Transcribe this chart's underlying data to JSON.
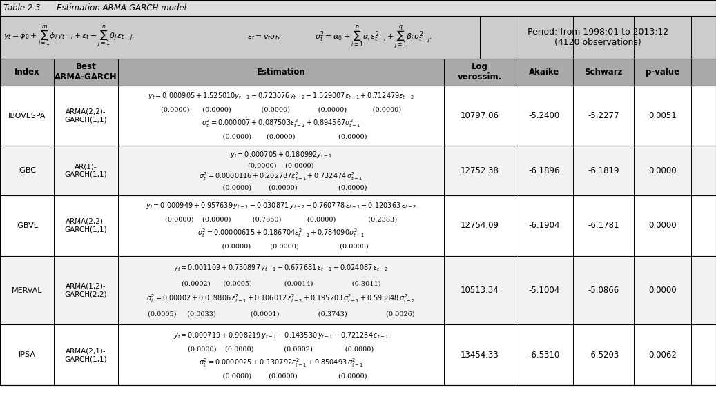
{
  "title": "Table 2.3  Estimation ARMA-GARCH model.",
  "formula_row": "y_t = \\phi_0 + \\sum_{i=1}^{m} \\phi_i\\, y_{t-i} + \\varepsilon_t - \\sum_{j=1}^{n} \\theta_j\\, \\varepsilon_{t-j},\\qquad \\varepsilon_t = v_t\\sigma_t,\\qquad \\sigma_t^2 = \\alpha_0 + \\sum_{i=1}^{p} \\alpha_i\\, \\varepsilon_{t-i}^2 + \\sum_{j=1}^{q} \\beta_j\\, \\sigma_{t-j}^2.",
  "period_text": "Period: from 1998:01 to 2013:12\n(4120 observations)",
  "col_headers": [
    "Index",
    "Best\nARMA-GARCH",
    "Estimation",
    "Log\nverossim.",
    "Akaike",
    "Schwarz",
    "p-value"
  ],
  "bg_header": "#C0C0C0",
  "bg_formula": "#C8C8C8",
  "bg_col_header": "#A8A8A8",
  "bg_white": "#FFFFFF",
  "bg_light": "#F0F0F0",
  "rows": [
    {
      "index": "IBOVESPA",
      "model": "ARMA(2,2)-\nGARCH(1,1)",
      "estimation_lines": [
        "y_t = 0.000905 + 1.525010y_{t-1}  - 0.723076y_{t-2} - 1.529007\\varepsilon_{t-1} + 0.712479\\varepsilon_{t-2}",
        "(0.0000)      (0.0000)              (0.0000)             (0.0000)            (0.0000)",
        "\\sigma_t^2 = 0.000007 + 0.087503\\varepsilon_{t-1}^2 + 0.894567\\sigma_{t-1}^2",
        "             (0.0000)       (0.0000)                    (0.0000)"
      ],
      "log": "10797.06",
      "akaike": "-5.2400",
      "schwarz": "-5.2277",
      "pvalue": "0.0051"
    },
    {
      "index": "IGBC",
      "model": "AR(1)-\nGARCH(1,1)",
      "estimation_lines": [
        "y_t = 0.000705 + 0.180992y_{t-1}",
        "(0.0000)    (0.0000)",
        "\\sigma_t^2 = 0.0000116 + 0.202787\\varepsilon_{t-1}^2 + 0.732474\\,\\sigma_{t-1}^2",
        "             (0.0000)        (0.0000)                   (0.0000)"
      ],
      "log": "12752.38",
      "akaike": "-6.1896",
      "schwarz": "-6.1819",
      "pvalue": "0.0000"
    },
    {
      "index": "IGBVL",
      "model": "ARMA(2,2)-\nGARCH(1,1)",
      "estimation_lines": [
        "y_t = 0.000949 + 0.957639\\,y_{t-1} - 0.030871\\,y_{t-2} - 0.760778\\,\\varepsilon_{t-1} - 0.120363\\,\\varepsilon_{t-2}",
        "(0.0000)    (0.0000)          (0.7850)            (0.0000)               (0.2383)",
        "\\sigma_t^2 = 0.00000615 + 0.186704\\varepsilon_{t-1}^2 + 0.784090\\sigma_{t-1}^2",
        "             (0.0000)         (0.0000)                   (0.0000)"
      ],
      "log": "12754.09",
      "akaike": "-6.1904",
      "schwarz": "-6.1781",
      "pvalue": "0.0000"
    },
    {
      "index": "MERVAL",
      "model": "ARMA(1,2)-\nGARCH(2,2)",
      "estimation_lines": [
        "y_t = 0.001109 + 0.730897\\,y_{t-1} - 0.677681\\,\\varepsilon_{t-1} - 0.024087\\,\\varepsilon_{t-2}",
        "(0.0002)      (0.0005)               (0.0014)                  (0.3011)",
        "\\sigma_t^2 = 0.00002 + 0.059806\\,\\varepsilon_{t-1}^2 + 0.106012\\,\\varepsilon_{t-2}^2 + 0.195203\\,\\sigma_{t-1}^2 + 0.593848\\,\\sigma_{t-2}^2",
        "(0.0005)     (0.0033)                (0.0001)                  (0.3743)                  (0.0026)"
      ],
      "log": "10513.34",
      "akaike": "-5.1004",
      "schwarz": "-5.0866",
      "pvalue": "0.0000"
    },
    {
      "index": "IPSA",
      "model": "ARMA(2,1)-\nGARCH(1,1)",
      "estimation_lines": [
        "y_t = 0.000719 + 0.908219\\,y_{t-1} - 0.143530\\,y_{t-1} - 0.721234\\,\\varepsilon_{t-1}",
        "(0.0000)    (0.0000)              (0.0002)               (0.0000)",
        "\\sigma_t^2 = 0.0000025 + 0.130792\\varepsilon_{t-1}^2 + 0.850493\\,\\sigma_{t-1}^2",
        "             (0.0000)        (0.0000)                   (0.0000)"
      ],
      "log": "13454.33",
      "akaike": "-6.5310",
      "schwarz": "-6.5203",
      "pvalue": "0.0062"
    }
  ]
}
